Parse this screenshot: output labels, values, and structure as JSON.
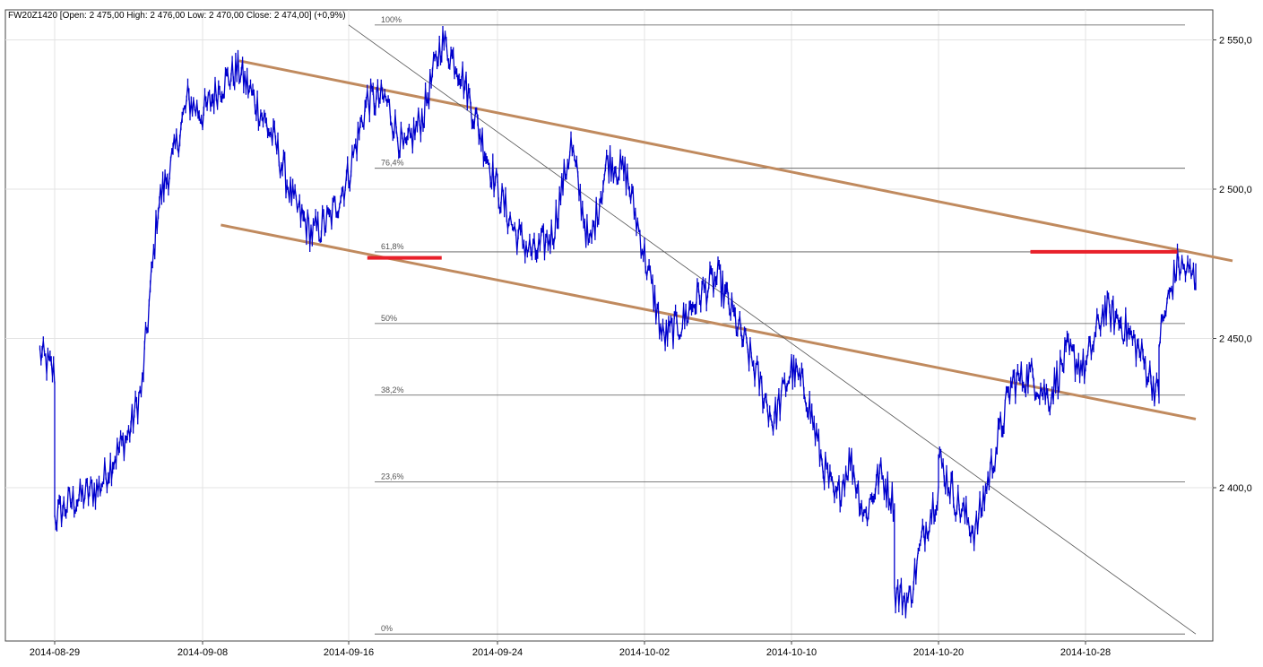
{
  "chart_data": {
    "type": "ohlc",
    "title": "FW20Z1420 [Open: 2 475,00  High: 2 476,00  Low: 2 470,00  Close: 2 474,00] (+0,9%)",
    "xlabel": "",
    "ylabel": "",
    "x_tick_labels": [
      "2014-08-29",
      "2014-09-08",
      "2014-09-16",
      "2014-09-24",
      "2014-10-02",
      "2014-10-10",
      "2014-10-20",
      "2014-10-28"
    ],
    "y_ticks": [
      2400,
      2450,
      2500,
      2550
    ],
    "y_tick_labels": [
      "2 400,0",
      "2 450,0",
      "2 500,0",
      "2 550,0"
    ],
    "ylim": [
      2351,
      2557
    ],
    "grid": true,
    "price_series": {
      "color": "#0000cc",
      "keypoints": [
        [
          "2014-08-28",
          2445
        ],
        [
          "2014-08-29",
          2438
        ],
        [
          "2014-08-29",
          2390
        ],
        [
          "2014-08-30",
          2395
        ],
        [
          "2014-09-01",
          2400
        ],
        [
          "2014-09-02",
          2410
        ],
        [
          "2014-09-03",
          2418
        ],
        [
          "2014-09-04",
          2435
        ],
        [
          "2014-09-04",
          2440
        ],
        [
          "2014-09-05",
          2495
        ],
        [
          "2014-09-06",
          2510
        ],
        [
          "2014-09-07",
          2530
        ],
        [
          "2014-09-08",
          2525
        ],
        [
          "2014-09-09",
          2535
        ],
        [
          "2014-09-10",
          2540
        ],
        [
          "2014-09-11",
          2528
        ],
        [
          "2014-09-12",
          2515
        ],
        [
          "2014-09-13",
          2495
        ],
        [
          "2014-09-14",
          2485
        ],
        [
          "2014-09-15",
          2490
        ],
        [
          "2014-09-16",
          2505
        ],
        [
          "2014-09-17",
          2530
        ],
        [
          "2014-09-18",
          2530
        ],
        [
          "2014-09-19",
          2512
        ],
        [
          "2014-09-20",
          2525
        ],
        [
          "2014-09-21",
          2550
        ],
        [
          "2014-09-22",
          2540
        ],
        [
          "2014-09-23",
          2520
        ],
        [
          "2014-09-24",
          2500
        ],
        [
          "2014-09-25",
          2485
        ],
        [
          "2014-09-26",
          2478
        ],
        [
          "2014-09-27",
          2485
        ],
        [
          "2014-09-28",
          2515
        ],
        [
          "2014-09-29",
          2480
        ],
        [
          "2014-09-30",
          2510
        ],
        [
          "2014-10-01",
          2505
        ],
        [
          "2014-10-02",
          2478
        ],
        [
          "2014-10-03",
          2450
        ],
        [
          "2014-10-04",
          2455
        ],
        [
          "2014-10-05",
          2465
        ],
        [
          "2014-10-06",
          2470
        ],
        [
          "2014-10-07",
          2455
        ],
        [
          "2014-10-08",
          2440
        ],
        [
          "2014-10-09",
          2422
        ],
        [
          "2014-10-10",
          2440
        ],
        [
          "2014-10-11",
          2432
        ],
        [
          "2014-10-12",
          2410
        ],
        [
          "2014-10-13",
          2395
        ],
        [
          "2014-10-14",
          2410
        ],
        [
          "2014-10-15",
          2390
        ],
        [
          "2014-10-16",
          2405
        ],
        [
          "2014-10-17",
          2395
        ],
        [
          "2014-10-17",
          2365
        ],
        [
          "2014-10-18",
          2362
        ],
        [
          "2014-10-19",
          2385
        ],
        [
          "2014-10-20",
          2400
        ],
        [
          "2014-10-20",
          2410
        ],
        [
          "2014-10-21",
          2395
        ],
        [
          "2014-10-22",
          2385
        ],
        [
          "2014-10-23",
          2410
        ],
        [
          "2014-10-24",
          2435
        ],
        [
          "2014-10-25",
          2438
        ],
        [
          "2014-10-26",
          2430
        ],
        [
          "2014-10-27",
          2445
        ],
        [
          "2014-10-28",
          2440
        ],
        [
          "2014-10-29",
          2460
        ],
        [
          "2014-10-30",
          2455
        ],
        [
          "2014-10-31",
          2445
        ],
        [
          "2014-11-01",
          2430
        ],
        [
          "2014-11-01",
          2450
        ],
        [
          "2014-11-02",
          2475
        ],
        [
          "2014-11-03",
          2470
        ],
        [
          "2014-11-03",
          2474
        ]
      ]
    },
    "fibonacci_levels": [
      {
        "label": "100%",
        "value": 2555
      },
      {
        "label": "76,4%",
        "value": 2507
      },
      {
        "label": "61,8%",
        "value": 2479
      },
      {
        "label": "50%",
        "value": 2455
      },
      {
        "label": "38,2%",
        "value": 2431
      },
      {
        "label": "23,6%",
        "value": 2402
      },
      {
        "label": "0%",
        "value": 2351
      }
    ],
    "trend_lines": [
      {
        "name": "upper-channel",
        "color": "#c08a5e",
        "points": [
          [
            "2014-09-10",
            2543
          ],
          [
            "2014-11-05",
            2476
          ]
        ]
      },
      {
        "name": "lower-channel",
        "color": "#c08a5e",
        "points": [
          [
            "2014-09-09",
            2488
          ],
          [
            "2014-11-03",
            2423
          ]
        ]
      },
      {
        "name": "diagonal",
        "color": "#555555",
        "points": [
          [
            "2014-09-16",
            2555
          ],
          [
            "2014-11-03",
            2351
          ]
        ]
      }
    ],
    "highlight_lines": [
      {
        "color": "#e8202a",
        "points": [
          [
            "2014-09-17",
            2477
          ],
          [
            "2014-09-21",
            2477
          ]
        ]
      },
      {
        "color": "#e8202a",
        "points": [
          [
            "2014-10-25",
            2479
          ],
          [
            "2014-11-02",
            2479
          ]
        ]
      }
    ]
  }
}
